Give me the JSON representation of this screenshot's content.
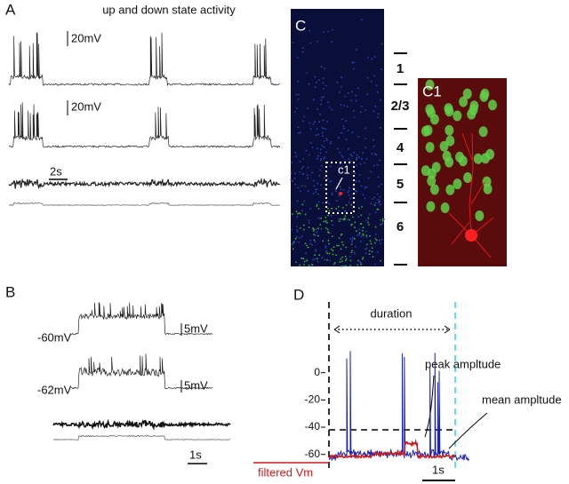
{
  "panel_a": {
    "label": "A",
    "title": "up and down state activity",
    "scale_1": "20mV",
    "scale_2": "20mV",
    "time_scale": "2s"
  },
  "panel_b": {
    "label": "B",
    "trace_1_vm": "-60mV",
    "trace_2_vm": "-62mV",
    "scale_1": "5mV",
    "scale_2": "5mV",
    "time_scale": "1s"
  },
  "panel_c": {
    "label": "C",
    "roi_label": "c1",
    "layers": [
      "1",
      "2/3",
      "4",
      "5",
      "6"
    ],
    "inset_label": "C1"
  },
  "panel_d": {
    "label": "D",
    "duration": "duration",
    "peak": "peak ampltude",
    "mean": "mean ampltude",
    "filtered": "filtered Vm",
    "time_scale": "1s",
    "ylim": [
      -68,
      5
    ],
    "yticks": [
      0,
      -20,
      -40,
      -60
    ]
  }
}
